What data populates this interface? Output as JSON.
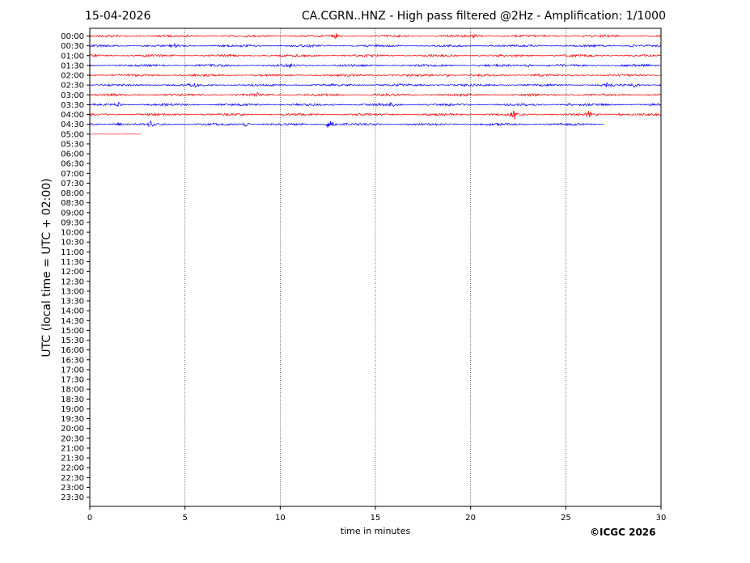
{
  "header": {
    "date": "15-04-2026",
    "title": "CA.CGRN..HNZ - High pass filtered @2Hz - Amplification: 1/1000"
  },
  "credit": "©ICGC 2026",
  "chart_data": {
    "type": "line",
    "xlabel": "time in minutes",
    "ylabel": "UTC (local time = UTC + 02:00)",
    "xlim": [
      0,
      30
    ],
    "xticks": [
      "0",
      "5",
      "10",
      "15",
      "20",
      "25",
      "30"
    ],
    "x_gridlines": [
      5,
      10,
      15,
      20,
      25
    ],
    "rows": [
      "00:00",
      "00:30",
      "01:00",
      "01:30",
      "02:00",
      "02:30",
      "03:00",
      "03:30",
      "04:00",
      "04:30",
      "05:00",
      "05:30",
      "06:00",
      "06:30",
      "07:00",
      "07:30",
      "08:00",
      "08:30",
      "09:00",
      "09:30",
      "10:00",
      "10:30",
      "11:00",
      "11:30",
      "12:00",
      "12:30",
      "13:00",
      "13:30",
      "14:00",
      "14:30",
      "15:00",
      "15:30",
      "16:00",
      "16:30",
      "17:00",
      "17:30",
      "18:00",
      "18:30",
      "19:00",
      "19:30",
      "20:00",
      "20:30",
      "21:00",
      "21:30",
      "22:00",
      "22:30",
      "23:00",
      "23:30"
    ],
    "series_colors": [
      "#ff0000",
      "#0000ff"
    ],
    "traces": [
      {
        "row": "00:00",
        "end_minute": 30,
        "events": [
          [
            12.9,
            3
          ],
          [
            20.2,
            2
          ]
        ]
      },
      {
        "row": "00:30",
        "end_minute": 30,
        "events": [
          [
            4.5,
            2
          ],
          [
            28.5,
            2
          ]
        ]
      },
      {
        "row": "01:00",
        "end_minute": 30,
        "events": []
      },
      {
        "row": "01:30",
        "end_minute": 30,
        "events": [
          [
            10.5,
            2
          ],
          [
            23.0,
            2
          ]
        ]
      },
      {
        "row": "02:00",
        "end_minute": 30,
        "events": [
          [
            18.8,
            2
          ],
          [
            23.5,
            2
          ]
        ]
      },
      {
        "row": "02:30",
        "end_minute": 30,
        "events": [
          [
            5.5,
            2
          ],
          [
            27.2,
            3
          ],
          [
            28.6,
            4
          ]
        ]
      },
      {
        "row": "03:00",
        "end_minute": 30,
        "events": [
          [
            8.8,
            3
          ]
        ]
      },
      {
        "row": "03:30",
        "end_minute": 30,
        "events": [
          [
            1.5,
            3
          ],
          [
            15.9,
            3
          ],
          [
            25.2,
            2
          ]
        ]
      },
      {
        "row": "04:00",
        "end_minute": 30,
        "events": [
          [
            22.3,
            5
          ],
          [
            26.2,
            4
          ],
          [
            27.8,
            2
          ]
        ]
      },
      {
        "row": "04:30",
        "end_minute": 27,
        "events": [
          [
            1.5,
            3
          ],
          [
            3.2,
            3
          ],
          [
            8.2,
            4
          ],
          [
            12.6,
            10
          ]
        ]
      },
      {
        "row": "05:00",
        "end_minute": 2.7,
        "events": []
      }
    ]
  }
}
